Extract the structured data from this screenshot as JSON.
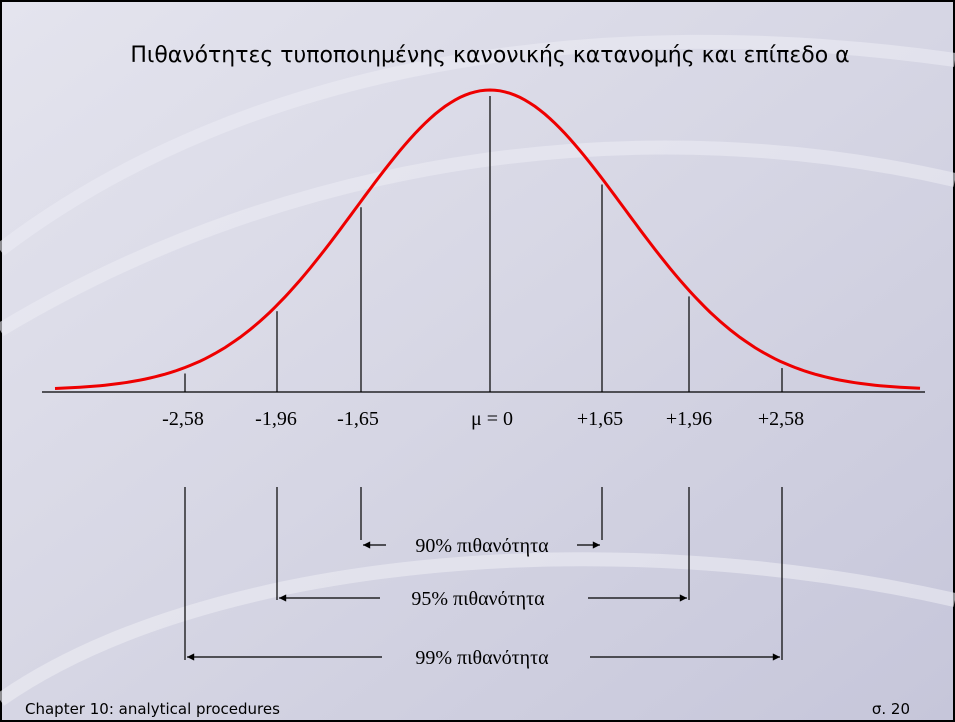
{
  "title": "Πιθανότητες τυποποιημένης κανονικής κατανομής και επίπεδο α",
  "markers": [
    "-2,58",
    "-1,96",
    "-1,65",
    "μ = 0",
    "+1,65",
    "+1,96",
    "+2,58"
  ],
  "ranges": [
    "90% πιθανότητα",
    "95% πιθανότητα",
    "99%  πιθανότητα"
  ],
  "footer": {
    "left": "Chapter 10: analytical procedures",
    "right": "σ. 20"
  }
}
